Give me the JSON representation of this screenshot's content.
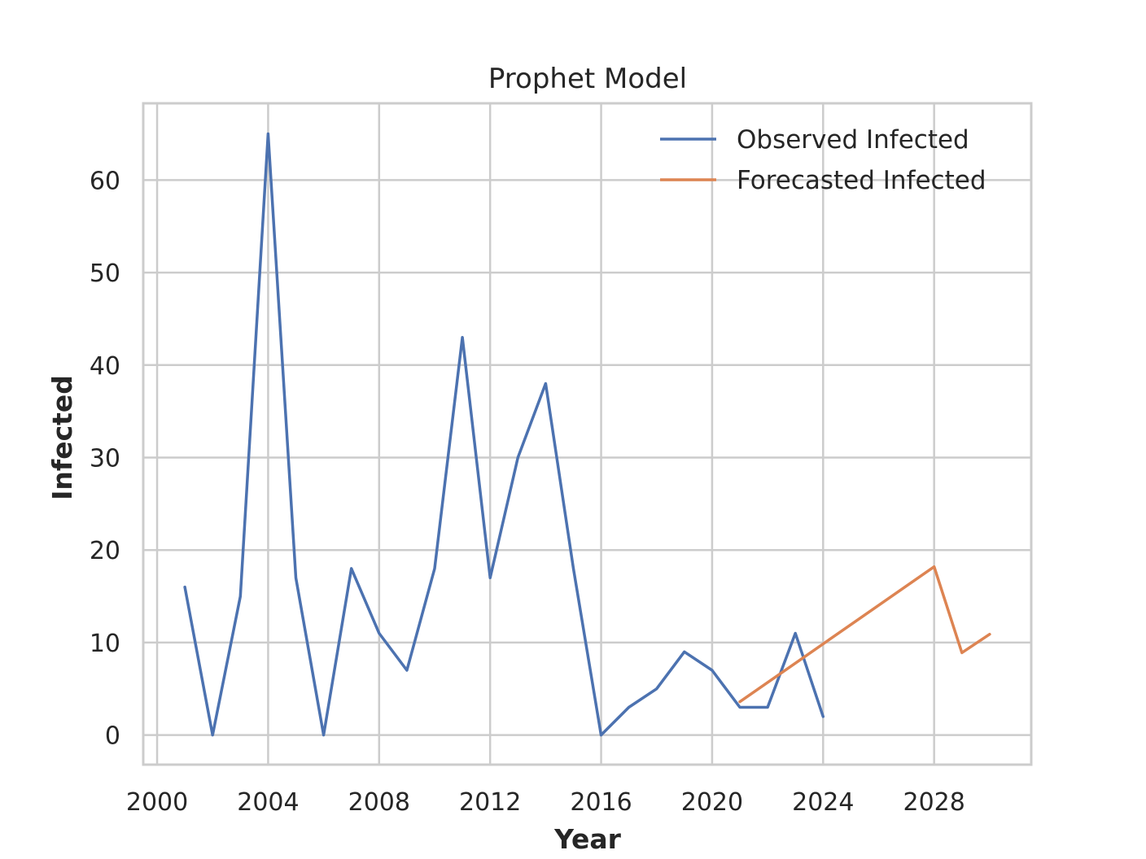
{
  "chart_data": {
    "type": "line",
    "title": "Prophet Model",
    "xlabel": "Year",
    "ylabel": "Infected",
    "xlim": [
      1999.5,
      2031.5
    ],
    "ylim": [
      -3.2,
      68.3
    ],
    "x_ticks": [
      2000,
      2004,
      2008,
      2012,
      2016,
      2020,
      2024,
      2028
    ],
    "y_ticks": [
      0,
      10,
      20,
      30,
      40,
      50,
      60
    ],
    "grid": true,
    "legend_position": "top-right",
    "series": [
      {
        "name": "Observed Infected",
        "color": "#4c72b0",
        "x": [
          2001,
          2002,
          2003,
          2004,
          2005,
          2006,
          2007,
          2008,
          2009,
          2010,
          2011,
          2012,
          2013,
          2014,
          2015,
          2016,
          2017,
          2018,
          2019,
          2020,
          2021,
          2022,
          2023,
          2024
        ],
        "y": [
          16,
          0,
          15,
          65,
          17,
          0,
          18,
          11,
          7,
          18,
          43,
          17,
          30,
          38,
          18,
          0,
          3,
          5,
          9,
          7,
          3,
          3,
          11,
          2
        ]
      },
      {
        "name": "Forecasted Infected",
        "color": "#dd8452",
        "x": [
          2021,
          2028,
          2029,
          2030
        ],
        "y": [
          3.6,
          18.2,
          8.9,
          10.9
        ]
      }
    ]
  }
}
